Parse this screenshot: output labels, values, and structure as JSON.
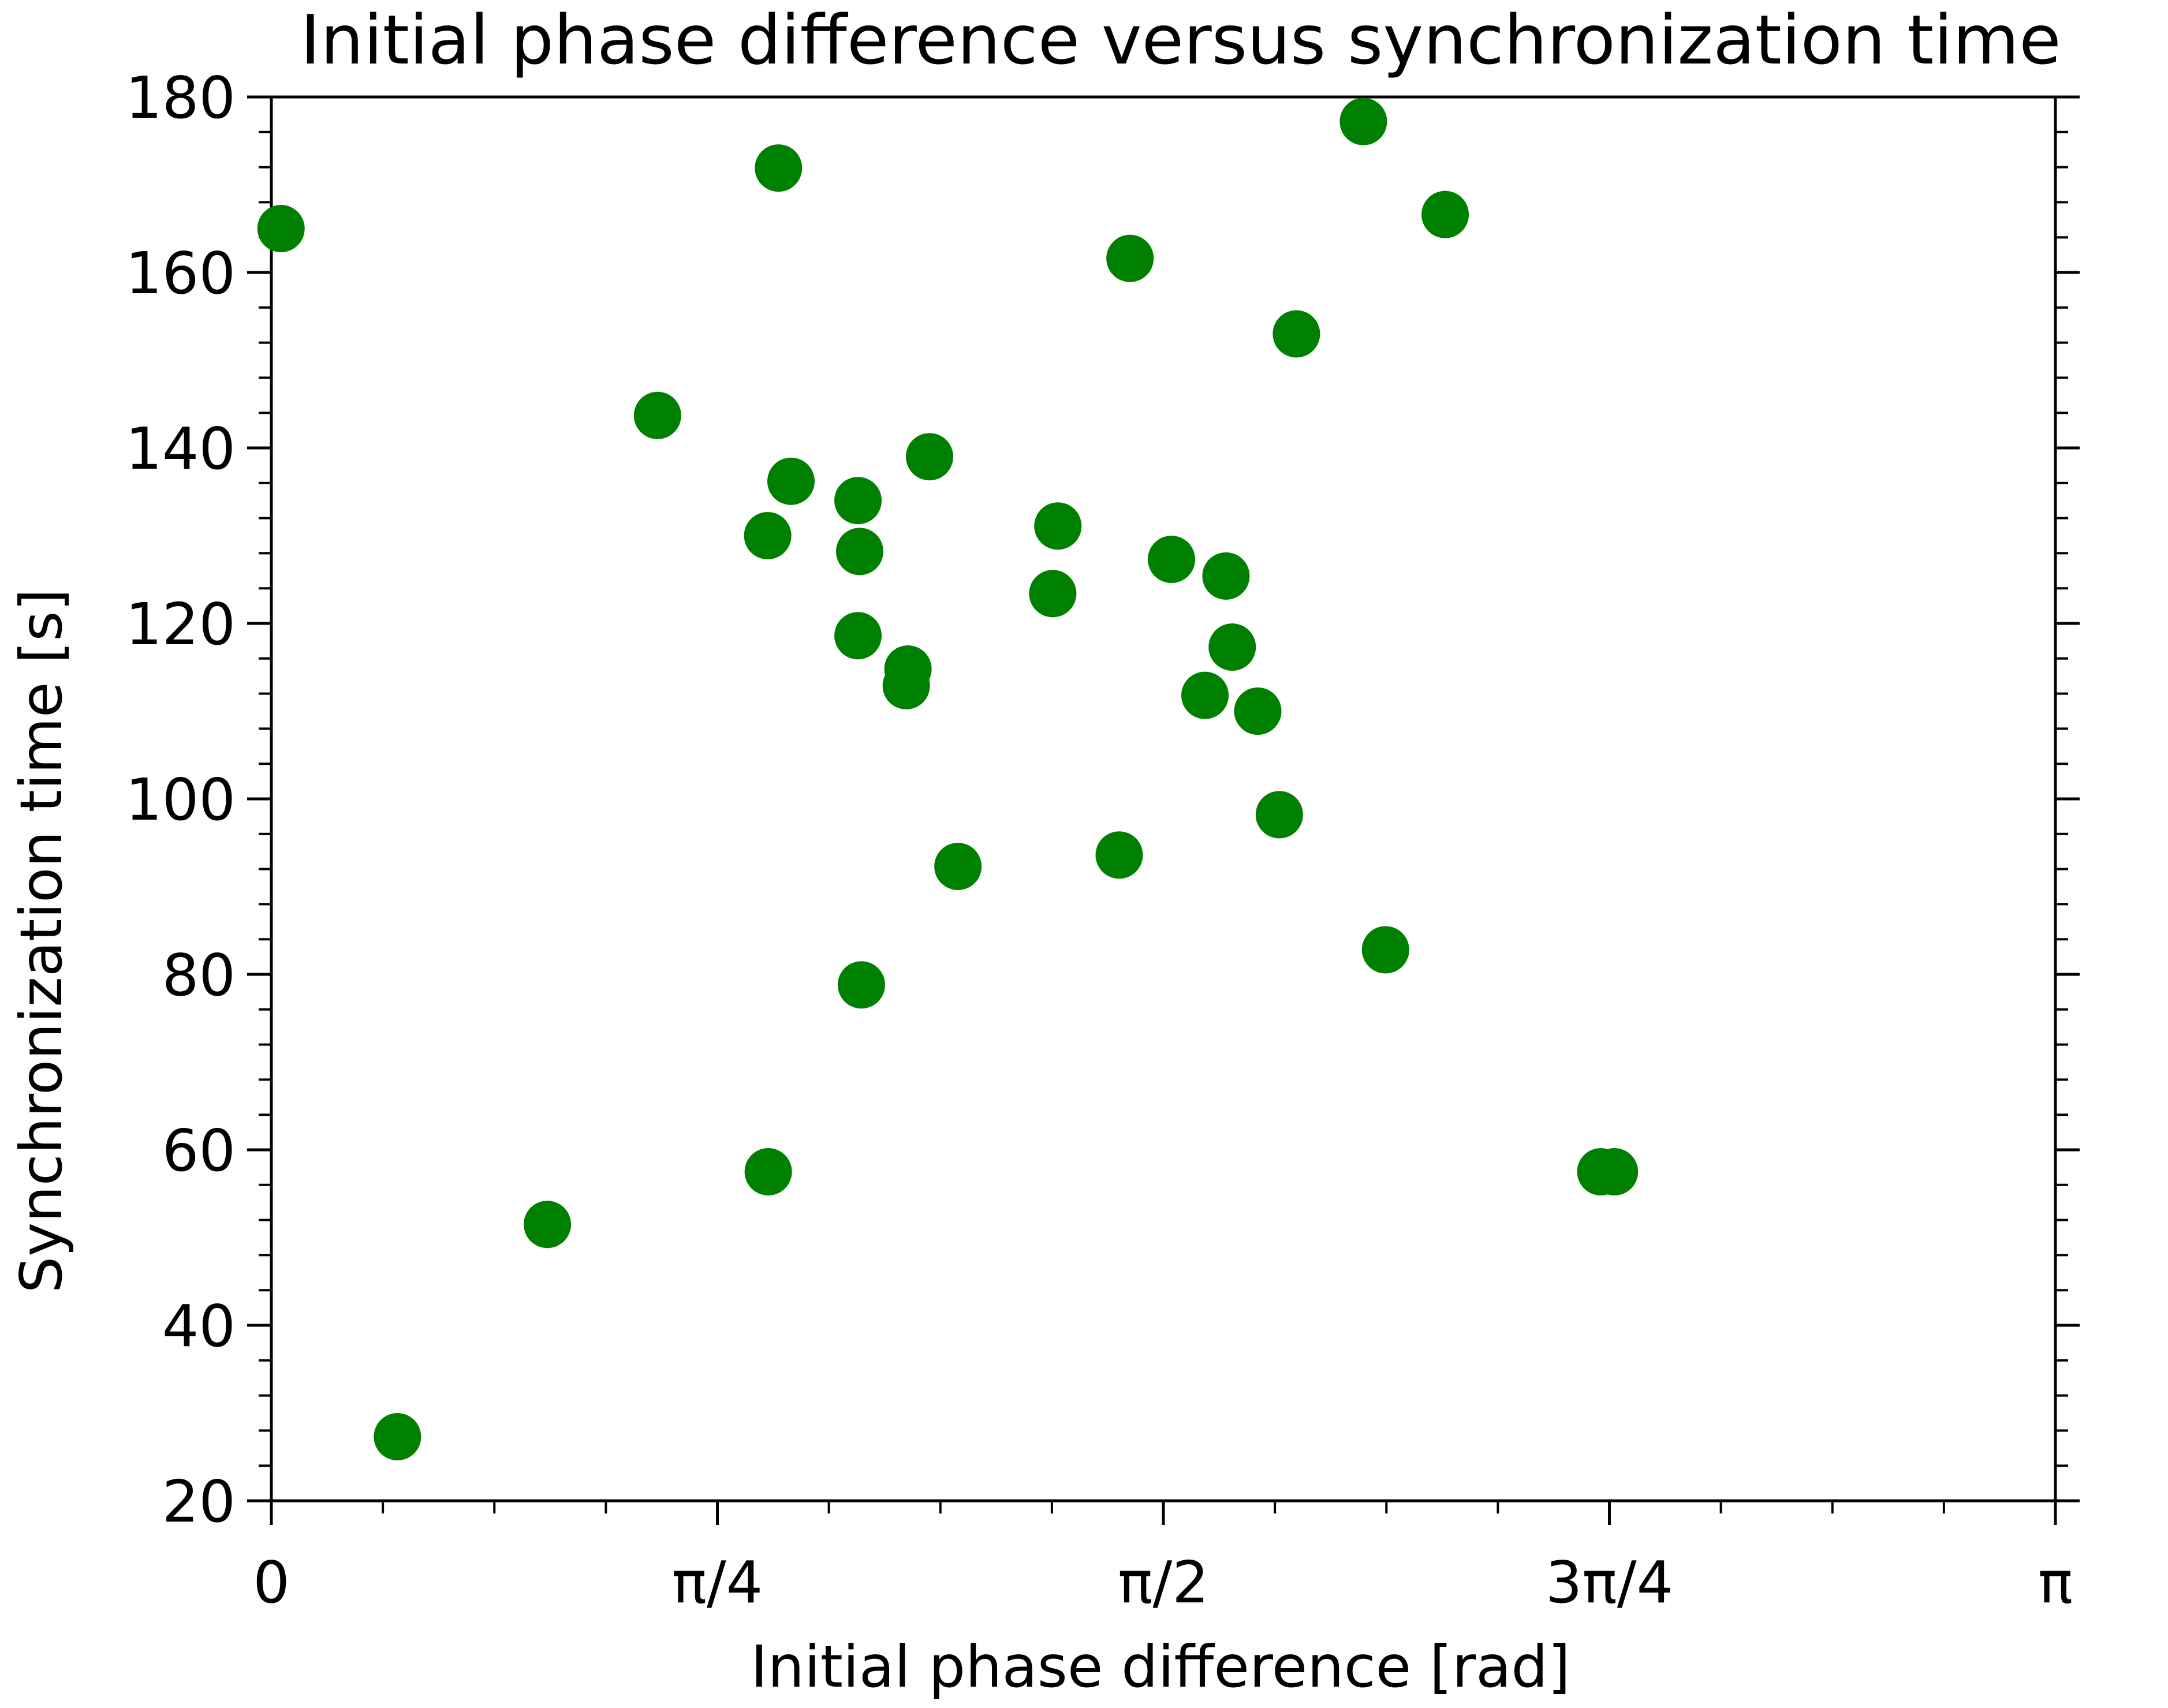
{
  "chart_data": {
    "type": "scatter",
    "title": "Initial phase difference versus synchronization time",
    "xlabel": "Initial phase difference [rad]",
    "ylabel": "Synchronization time [s]",
    "xlim": [
      0,
      3.14159
    ],
    "ylim": [
      20,
      180
    ],
    "x_ticks": [
      {
        "value": 0,
        "label": "0"
      },
      {
        "value": 0.785398,
        "label": "π/4"
      },
      {
        "value": 1.570796,
        "label": "π/2"
      },
      {
        "value": 2.356194,
        "label": "3π/4"
      },
      {
        "value": 3.141593,
        "label": "π"
      }
    ],
    "y_ticks": [
      {
        "value": 20,
        "label": "20"
      },
      {
        "value": 40,
        "label": "40"
      },
      {
        "value": 60,
        "label": "60"
      },
      {
        "value": 80,
        "label": "80"
      },
      {
        "value": 100,
        "label": "100"
      },
      {
        "value": 120,
        "label": "120"
      },
      {
        "value": 140,
        "label": "140"
      },
      {
        "value": 160,
        "label": "160"
      },
      {
        "value": 180,
        "label": "180"
      }
    ],
    "grid": false,
    "color": "#008000",
    "points": [
      {
        "x": 0.017,
        "y": 165.0
      },
      {
        "x": 0.222,
        "y": 27.3
      },
      {
        "x": 0.486,
        "y": 51.5
      },
      {
        "x": 0.68,
        "y": 143.7
      },
      {
        "x": 0.875,
        "y": 57.5
      },
      {
        "x": 0.874,
        "y": 130.0
      },
      {
        "x": 0.893,
        "y": 171.9
      },
      {
        "x": 0.915,
        "y": 136.2
      },
      {
        "x": 1.033,
        "y": 134.0
      },
      {
        "x": 1.036,
        "y": 128.2
      },
      {
        "x": 1.033,
        "y": 118.6
      },
      {
        "x": 1.039,
        "y": 78.8
      },
      {
        "x": 1.121,
        "y": 114.8
      },
      {
        "x": 1.118,
        "y": 112.9
      },
      {
        "x": 1.159,
        "y": 139.0
      },
      {
        "x": 1.209,
        "y": 92.3
      },
      {
        "x": 1.376,
        "y": 123.4
      },
      {
        "x": 1.385,
        "y": 131.1
      },
      {
        "x": 1.493,
        "y": 93.6
      },
      {
        "x": 1.512,
        "y": 161.6
      },
      {
        "x": 1.585,
        "y": 127.3
      },
      {
        "x": 1.644,
        "y": 111.8
      },
      {
        "x": 1.681,
        "y": 125.4
      },
      {
        "x": 1.692,
        "y": 117.3
      },
      {
        "x": 1.737,
        "y": 110.0
      },
      {
        "x": 1.775,
        "y": 98.2
      },
      {
        "x": 1.805,
        "y": 153.0
      },
      {
        "x": 1.923,
        "y": 177.2
      },
      {
        "x": 1.962,
        "y": 82.8
      },
      {
        "x": 2.067,
        "y": 166.6
      },
      {
        "x": 2.341,
        "y": 57.5
      },
      {
        "x": 2.365,
        "y": 57.5
      }
    ]
  }
}
